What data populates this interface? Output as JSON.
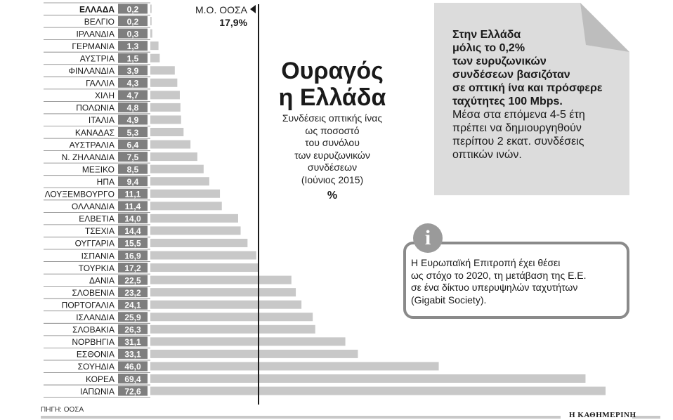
{
  "chart_data": {
    "type": "bar",
    "orientation": "horizontal",
    "title": "Ουραγός η Ελλάδα",
    "title_lines": [
      "Ουραγός",
      "η Ελλάδα"
    ],
    "subtitle_lines": [
      "Συνδέσεις οπτικής ίνας",
      "ως ποσοστό",
      "του συνόλου",
      "των ευρυζωνικών",
      "συνδέσεων",
      "(Ιούνιος 2015)"
    ],
    "unit": "%",
    "categories": [
      "ΕΛΛΑΔΑ",
      "ΒΕΛΓΙΟ",
      "ΙΡΛΑΝΔΙΑ",
      "ΓΕΡΜΑΝΙΑ",
      "ΑΥΣΤΡΙΑ",
      "ΦΙΝΛΑΝΔΙΑ",
      "ΓΑΛΛΙΑ",
      "ΧΙΛΗ",
      "ΠΟΛΩΝΙΑ",
      "ΙΤΑΛΙΑ",
      "ΚΑΝΑΔΑΣ",
      "ΑΥΣΤΡΑΛΙΑ",
      "Ν. ΖΗΛΑΝΔΙΑ",
      "ΜΕΞΙΚΟ",
      "ΗΠΑ",
      "ΛΟΥΞΕΜΒΟΥΡΓΟ",
      "ΟΛΛΑΝΔΙΑ",
      "ΕΛΒΕΤΙΑ",
      "ΤΣΕΧΙΑ",
      "ΟΥΓΓΑΡΙΑ",
      "ΙΣΠΑΝΙΑ",
      "ΤΟΥΡΚΙΑ",
      "ΔΑΝΙΑ",
      "ΣΛΟΒΕΝΙΑ",
      "ΠΟΡΤΟΓΑΛΙΑ",
      "ΙΣΛΑΝΔΙΑ",
      "ΣΛΟΒΑΚΙΑ",
      "ΝΟΡΒΗΓΙΑ",
      "ΕΣΘΟΝΙΑ",
      "ΣΟΥΗΔΙΑ",
      "ΚΟΡΕΑ",
      "ΙΑΠΩΝΙΑ"
    ],
    "values": [
      0.2,
      0.2,
      0.3,
      1.3,
      1.5,
      3.9,
      4.3,
      4.7,
      4.8,
      4.9,
      5.3,
      6.4,
      7.5,
      8.5,
      9.4,
      11.1,
      11.4,
      14.0,
      14.4,
      15.5,
      16.9,
      17.2,
      22.5,
      23.2,
      24.1,
      25.9,
      26.3,
      31.1,
      33.1,
      46.0,
      69.4,
      72.6
    ],
    "value_labels": [
      "0,2",
      "0,2",
      "0,3",
      "1,3",
      "1,5",
      "3,9",
      "4,3",
      "4,7",
      "4,8",
      "4,9",
      "5,3",
      "6,4",
      "7,5",
      "8,5",
      "9,4",
      "11,1",
      "11,4",
      "14,0",
      "14,4",
      "15,5",
      "16,9",
      "17,2",
      "22,5",
      "23,2",
      "24,1",
      "25,9",
      "26,3",
      "31,1",
      "33,1",
      "46,0",
      "69,4",
      "72,6"
    ],
    "highlight_category": "ΕΛΛΑΔΑ",
    "average": {
      "label": "Μ.Ο. ΟΟΣΑ",
      "value": 17.9,
      "value_label": "17,9%"
    },
    "xlim": [
      0,
      72.6
    ],
    "colors": {
      "bar": "#c8c8c8",
      "label_box": "#7f7f7f",
      "text": "#1a1a1a",
      "avg_line": "#1a1a1a"
    },
    "grid": false,
    "legend": "none"
  },
  "note": {
    "bold_lines": [
      "Στην Ελλάδα",
      "μόλις το 0,2%",
      "των ευρυζωνικών",
      "συνδέσεων βασιζόταν",
      "σε οπτική ίνα και πρόσφερε",
      "ταχύτητες 100 Mbps."
    ],
    "lines": [
      "Μέσα στα επόμενα 4-5 έτη",
      "πρέπει να δημιουργηθούν",
      "περίπου 2 εκατ. συνδέσεις",
      "οπτικών ινών."
    ]
  },
  "info": {
    "icon": "info-icon",
    "icon_glyph": "i",
    "lines": [
      "Η Ευρωπαϊκή Επιτροπή έχει θέσει",
      "ως στόχο το 2020, τη μετάβαση της Ε.Ε.",
      "σε ένα δίκτυο υπερυψηλών ταχυτήτων",
      "(Gigabit Society)."
    ]
  },
  "source": "ΠΗΓΗ: ΟΟΣΑ",
  "brand": "Η ΚΑΘΗΜΕΡΙΝΗ"
}
